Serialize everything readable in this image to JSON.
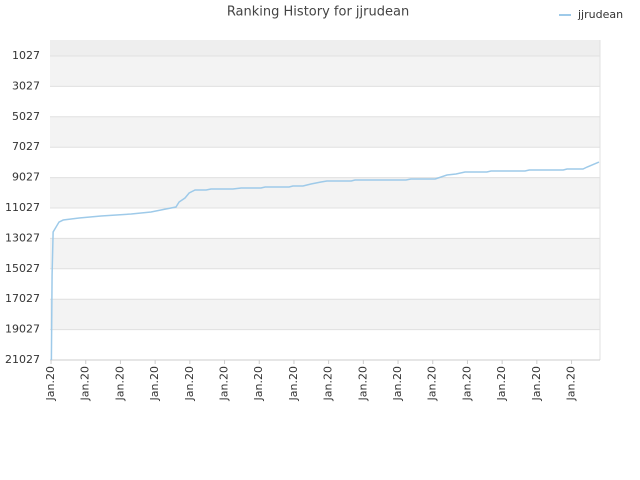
{
  "chart_data": {
    "type": "line",
    "title": "Ranking History for jjrudean",
    "x": [
      0.1,
      0.3,
      0.6,
      2.3,
      3.5,
      8.1,
      14.4,
      23.1,
      28.8,
      33.1,
      36.0,
      36.9,
      38.6,
      39.8,
      41.5,
      44.7,
      46.1,
      52.4,
      54.8,
      60.5,
      61.7,
      68.6,
      69.7,
      72.6,
      74.9,
      77.8,
      79.5,
      86.5,
      87.6,
      102.3,
      103.7,
      110.7,
      114.1,
      116.7,
      119.3,
      125.6,
      126.8,
      136.6,
      137.8,
      147.6,
      148.7,
      153.3,
      154.5,
      157.9
    ],
    "series": [
      {
        "name": "jjrudean",
        "color": "#9ecae9",
        "values": [
          21027,
          15437,
          12607,
          11950,
          11818,
          11686,
          11554,
          11423,
          11291,
          11094,
          10963,
          10634,
          10370,
          10041,
          9844,
          9844,
          9778,
          9778,
          9712,
          9712,
          9646,
          9646,
          9580,
          9580,
          9449,
          9317,
          9251,
          9251,
          9186,
          9186,
          9120,
          9120,
          8857,
          8791,
          8660,
          8660,
          8594,
          8594,
          8528,
          8528,
          8462,
          8462,
          8330,
          8002
        ]
      }
    ],
    "xlim": [
      -0.3,
      158.2
    ],
    "xticks": [
      {
        "value": 0,
        "label": "Jan.20"
      },
      {
        "value": 10,
        "label": "Jan.20"
      },
      {
        "value": 20,
        "label": "Jan.20"
      },
      {
        "value": 30,
        "label": "Jan.20"
      },
      {
        "value": 40,
        "label": "Jan.20"
      },
      {
        "value": 50,
        "label": "Jan.20"
      },
      {
        "value": 60,
        "label": "Jan.20"
      },
      {
        "value": 70,
        "label": "Jan.20"
      },
      {
        "value": 80,
        "label": "Jan.20"
      },
      {
        "value": 90,
        "label": "Jan.20"
      },
      {
        "value": 100,
        "label": "Jan.20"
      },
      {
        "value": 110,
        "label": "Jan.20"
      },
      {
        "value": 120,
        "label": "Jan.20"
      },
      {
        "value": 130,
        "label": "Jan.20"
      },
      {
        "value": 140,
        "label": "Jan.20"
      },
      {
        "value": 150,
        "label": "Jan.20"
      }
    ],
    "ylim": [
      21027,
      -25
    ],
    "yticks": [
      1027,
      3027,
      5027,
      7027,
      9027,
      11027,
      13027,
      15027,
      17027,
      19027,
      21027
    ],
    "grid": true,
    "legend": "top-right"
  }
}
